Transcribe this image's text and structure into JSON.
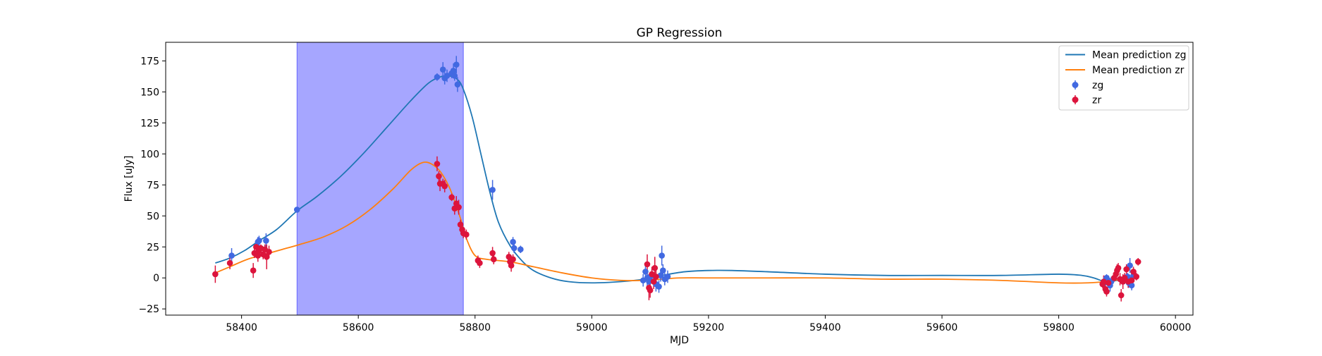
{
  "chart_data": {
    "type": "line",
    "title": "GP Regression",
    "xlabel": "MJD",
    "ylabel": "Flux [uJy]",
    "xlim": [
      58270,
      60030
    ],
    "ylim": [
      -30,
      190
    ],
    "xticks": [
      58400,
      58600,
      58800,
      59000,
      59200,
      59400,
      59600,
      59800,
      60000
    ],
    "yticks": [
      -25,
      0,
      25,
      50,
      75,
      100,
      125,
      150,
      175
    ],
    "grid": false,
    "legend_position": "top-right",
    "shaded_region": {
      "x0": 58495,
      "x1": 58780,
      "color": "#a6a6ff"
    },
    "lines": [
      {
        "name": "Mean prediction zg",
        "color": "#1f77b4",
        "points": [
          [
            58355,
            12
          ],
          [
            58380,
            16
          ],
          [
            58405,
            22
          ],
          [
            58430,
            30
          ],
          [
            58460,
            39
          ],
          [
            58495,
            54
          ],
          [
            58530,
            66
          ],
          [
            58570,
            82
          ],
          [
            58610,
            101
          ],
          [
            58650,
            122
          ],
          [
            58690,
            143
          ],
          [
            58720,
            157
          ],
          [
            58740,
            162
          ],
          [
            58755,
            163
          ],
          [
            58770,
            160
          ],
          [
            58780,
            152
          ],
          [
            58795,
            130
          ],
          [
            58810,
            100
          ],
          [
            58825,
            70
          ],
          [
            58840,
            45
          ],
          [
            58860,
            26
          ],
          [
            58880,
            14
          ],
          [
            58900,
            6
          ],
          [
            58930,
            0
          ],
          [
            58960,
            -3
          ],
          [
            59000,
            -4
          ],
          [
            59050,
            -3
          ],
          [
            59090,
            -1
          ],
          [
            59120,
            2
          ],
          [
            59160,
            5
          ],
          [
            59200,
            6
          ],
          [
            59240,
            6
          ],
          [
            59300,
            5
          ],
          [
            59400,
            3
          ],
          [
            59500,
            2
          ],
          [
            59600,
            2
          ],
          [
            59700,
            2
          ],
          [
            59800,
            3
          ],
          [
            59840,
            2
          ],
          [
            59860,
            0
          ],
          [
            59880,
            -3
          ],
          [
            59900,
            -2
          ],
          [
            59930,
            1
          ]
        ]
      },
      {
        "name": "Mean prediction zr",
        "color": "#ff7f0e",
        "points": [
          [
            58355,
            4
          ],
          [
            58380,
            9
          ],
          [
            58410,
            15
          ],
          [
            58440,
            19
          ],
          [
            58470,
            23
          ],
          [
            58500,
            27
          ],
          [
            58540,
            33
          ],
          [
            58580,
            42
          ],
          [
            58620,
            55
          ],
          [
            58660,
            72
          ],
          [
            58690,
            87
          ],
          [
            58710,
            93
          ],
          [
            58725,
            92
          ],
          [
            58740,
            86
          ],
          [
            58755,
            74
          ],
          [
            58765,
            62
          ],
          [
            58775,
            48
          ],
          [
            58785,
            32
          ],
          [
            58800,
            18
          ],
          [
            58820,
            15
          ],
          [
            58860,
            13
          ],
          [
            58900,
            9
          ],
          [
            58950,
            4
          ],
          [
            59000,
            0
          ],
          [
            59050,
            -2
          ],
          [
            59090,
            -2
          ],
          [
            59120,
            -1
          ],
          [
            59150,
            0
          ],
          [
            59200,
            0
          ],
          [
            59300,
            0
          ],
          [
            59400,
            0
          ],
          [
            59500,
            -1
          ],
          [
            59600,
            -1
          ],
          [
            59700,
            -2
          ],
          [
            59800,
            -4
          ],
          [
            59850,
            -4
          ],
          [
            59880,
            -3
          ],
          [
            59910,
            -1
          ],
          [
            59930,
            0
          ]
        ]
      }
    ],
    "series": [
      {
        "name": "zg",
        "color": "#4169e1",
        "points": [
          [
            58383,
            18,
            6
          ],
          [
            58428,
            29,
            4
          ],
          [
            58430,
            30,
            4
          ],
          [
            58442,
            30,
            6
          ],
          [
            58495,
            55,
            2
          ],
          [
            58735,
            162,
            3
          ],
          [
            58745,
            168,
            6
          ],
          [
            58748,
            161,
            5
          ],
          [
            58752,
            163,
            5
          ],
          [
            58760,
            165,
            4
          ],
          [
            58763,
            167,
            6
          ],
          [
            58765,
            163,
            4
          ],
          [
            58768,
            172,
            7
          ],
          [
            58770,
            156,
            6
          ],
          [
            58830,
            71,
            8
          ],
          [
            58865,
            29,
            4
          ],
          [
            58867,
            24,
            4
          ],
          [
            58878,
            23,
            3
          ],
          [
            59088,
            -2,
            5
          ],
          [
            59092,
            5,
            6
          ],
          [
            59095,
            0,
            7
          ],
          [
            59098,
            -3,
            4
          ],
          [
            59100,
            1,
            4
          ],
          [
            59103,
            2,
            5
          ],
          [
            59110,
            -5,
            6
          ],
          [
            59115,
            -7,
            5
          ],
          [
            59118,
            2,
            5
          ],
          [
            59120,
            18,
            8
          ],
          [
            59122,
            6,
            5
          ],
          [
            59125,
            -1,
            5
          ],
          [
            59130,
            1,
            5
          ],
          [
            59878,
            -4,
            4
          ],
          [
            59880,
            -2,
            4
          ],
          [
            59882,
            0,
            3
          ],
          [
            59885,
            -2,
            4
          ],
          [
            59888,
            -6,
            5
          ],
          [
            59890,
            -3,
            4
          ],
          [
            59910,
            -2,
            4
          ],
          [
            59913,
            -1,
            4
          ],
          [
            59918,
            1,
            3
          ],
          [
            59920,
            -4,
            4
          ],
          [
            59922,
            10,
            6
          ],
          [
            59925,
            -6,
            4
          ],
          [
            59928,
            2,
            3
          ]
        ]
      },
      {
        "name": "zr",
        "color": "#dc143c",
        "points": [
          [
            58355,
            3,
            7
          ],
          [
            58380,
            12,
            5
          ],
          [
            58420,
            6,
            6
          ],
          [
            58422,
            20,
            4
          ],
          [
            58425,
            25,
            4
          ],
          [
            58428,
            18,
            5
          ],
          [
            58430,
            22,
            4
          ],
          [
            58433,
            24,
            3
          ],
          [
            58437,
            19,
            4
          ],
          [
            58440,
            23,
            4
          ],
          [
            58443,
            17,
            10
          ],
          [
            58447,
            21,
            5
          ],
          [
            58735,
            92,
            6
          ],
          [
            58738,
            82,
            4
          ],
          [
            58740,
            76,
            6
          ],
          [
            58745,
            76,
            4
          ],
          [
            58748,
            74,
            5
          ],
          [
            58760,
            65,
            3
          ],
          [
            58765,
            56,
            5
          ],
          [
            58768,
            60,
            6
          ],
          [
            58772,
            57,
            6
          ],
          [
            58775,
            43,
            4
          ],
          [
            58778,
            39,
            5
          ],
          [
            58780,
            36,
            4
          ],
          [
            58785,
            35,
            4
          ],
          [
            58805,
            14,
            4
          ],
          [
            58808,
            12,
            4
          ],
          [
            58830,
            20,
            5
          ],
          [
            58832,
            15,
            4
          ],
          [
            58858,
            17,
            4
          ],
          [
            58860,
            13,
            4
          ],
          [
            58862,
            10,
            5
          ],
          [
            58865,
            15,
            4
          ],
          [
            59095,
            11,
            8
          ],
          [
            59098,
            -8,
            10
          ],
          [
            59100,
            -10,
            6
          ],
          [
            59103,
            3,
            6
          ],
          [
            59106,
            -3,
            6
          ],
          [
            59108,
            8,
            9
          ],
          [
            59110,
            1,
            5
          ],
          [
            59875,
            -5,
            3
          ],
          [
            59877,
            -3,
            5
          ],
          [
            59880,
            -9,
            4
          ],
          [
            59882,
            -11,
            4
          ],
          [
            59885,
            -4,
            4
          ],
          [
            59895,
            0,
            3
          ],
          [
            59898,
            3,
            4
          ],
          [
            59900,
            6,
            5
          ],
          [
            59902,
            8,
            4
          ],
          [
            59905,
            -1,
            5
          ],
          [
            59907,
            -14,
            5
          ],
          [
            59910,
            -3,
            6
          ],
          [
            59913,
            0,
            4
          ],
          [
            59916,
            7,
            4
          ],
          [
            59919,
            -3,
            5
          ],
          [
            59925,
            -2,
            4
          ],
          [
            59928,
            5,
            4
          ],
          [
            59933,
            1,
            3
          ],
          [
            59936,
            13,
            3
          ]
        ]
      }
    ]
  }
}
